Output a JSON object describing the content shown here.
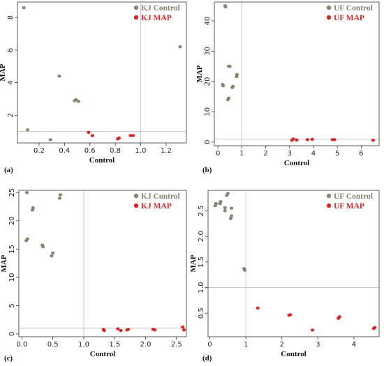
{
  "chart_data": [
    {
      "type": "scatter",
      "panel_label": "(a)",
      "xlabel": "Control",
      "ylabel": "MAP",
      "xlim": [
        0.03,
        1.36
      ],
      "ylim": [
        0.3,
        8.95
      ],
      "xticks": [
        0.2,
        0.4,
        0.6,
        0.8,
        1.0,
        1.2
      ],
      "xtick_labels": [
        "0.2",
        "0.4",
        "0.6",
        "0.8",
        "1.0",
        "1.2"
      ],
      "yticks": [
        2,
        4,
        6,
        8
      ],
      "ytick_labels": [
        "2",
        "4",
        "6",
        "8"
      ],
      "ref_x": 1.0,
      "ref_y": 1.0,
      "legend_position": "top-right",
      "series": [
        {
          "name": "KJ Control",
          "color": "#8c8272",
          "points": [
            [
              0.08,
              8.6
            ],
            [
              0.11,
              1.1
            ],
            [
              0.29,
              0.5
            ],
            [
              0.36,
              4.4
            ],
            [
              0.48,
              2.9
            ],
            [
              0.49,
              2.95
            ],
            [
              0.51,
              2.85
            ],
            [
              1.31,
              6.2
            ]
          ]
        },
        {
          "name": "KJ MAP",
          "color": "#d62828",
          "points": [
            [
              0.59,
              0.95
            ],
            [
              0.62,
              0.75
            ],
            [
              0.82,
              0.55
            ],
            [
              0.83,
              0.6
            ],
            [
              0.92,
              0.75
            ],
            [
              0.94,
              0.75
            ]
          ]
        }
      ]
    },
    {
      "type": "scatter",
      "panel_label": "(b)",
      "xlabel": "Control",
      "ylabel": "MAP",
      "xlim": [
        -0.15,
        6.75
      ],
      "ylim": [
        -1.2,
        46.2
      ],
      "xticks": [
        0,
        1,
        2,
        3,
        4,
        5,
        6
      ],
      "xtick_labels": [
        "0",
        "1",
        "2",
        "3",
        "4",
        "5",
        "6"
      ],
      "yticks": [
        0,
        10,
        20,
        30,
        40
      ],
      "ytick_labels": [
        "0",
        "10",
        "20",
        "30",
        "40"
      ],
      "ref_x": 1.0,
      "ref_y": 1.0,
      "legend_position": "top-right",
      "series": [
        {
          "name": "UF Control",
          "color": "#8c8272",
          "points": [
            [
              0.3,
              45.0
            ],
            [
              0.32,
              44.6
            ],
            [
              0.2,
              19.0
            ],
            [
              0.22,
              18.6
            ],
            [
              0.45,
              25.0
            ],
            [
              0.5,
              25.0
            ],
            [
              0.42,
              14.0
            ],
            [
              0.45,
              14.5
            ],
            [
              0.6,
              18.0
            ],
            [
              0.63,
              18.4
            ],
            [
              0.78,
              21.6
            ],
            [
              0.8,
              22.3
            ]
          ]
        },
        {
          "name": "UF MAP",
          "color": "#d62828",
          "points": [
            [
              3.1,
              0.6
            ],
            [
              3.15,
              1.0
            ],
            [
              3.3,
              0.7
            ],
            [
              3.75,
              0.8
            ],
            [
              3.95,
              0.9
            ],
            [
              4.8,
              0.8
            ],
            [
              4.88,
              0.8
            ],
            [
              6.5,
              0.6
            ]
          ]
        }
      ]
    },
    {
      "type": "scatter",
      "panel_label": "(c)",
      "xlabel": "Control",
      "ylabel": "MAP",
      "xlim": [
        -0.05,
        2.66
      ],
      "ylim": [
        -0.5,
        25.4
      ],
      "xticks": [
        0.0,
        0.5,
        1.0,
        1.5,
        2.0,
        2.5
      ],
      "xtick_labels": [
        "0.0",
        "0.5",
        "1.0",
        "1.5",
        "2.0",
        "2.5"
      ],
      "yticks": [
        0,
        5,
        10,
        15,
        20,
        25
      ],
      "ytick_labels": [
        "0",
        "5",
        "10",
        "15",
        "20",
        "25"
      ],
      "ref_x": 1.0,
      "ref_y": 1.0,
      "legend_position": "top-right",
      "series": [
        {
          "name": "KJ Control",
          "color": "#8c8272",
          "points": [
            [
              0.08,
              25.0
            ],
            [
              0.07,
              16.5
            ],
            [
              0.09,
              16.8
            ],
            [
              0.17,
              21.9
            ],
            [
              0.18,
              22.3
            ],
            [
              0.33,
              15.7
            ],
            [
              0.34,
              15.4
            ],
            [
              0.48,
              13.8
            ],
            [
              0.5,
              14.3
            ],
            [
              0.61,
              24.0
            ],
            [
              0.62,
              24.6
            ]
          ]
        },
        {
          "name": "KJ MAP",
          "color": "#d62828",
          "points": [
            [
              1.32,
              0.8
            ],
            [
              1.33,
              0.6
            ],
            [
              1.55,
              0.9
            ],
            [
              1.6,
              0.6
            ],
            [
              1.7,
              0.7
            ],
            [
              1.72,
              0.8
            ],
            [
              2.12,
              0.8
            ],
            [
              2.15,
              0.7
            ],
            [
              2.6,
              1.2
            ],
            [
              2.62,
              0.7
            ]
          ]
        }
      ]
    },
    {
      "type": "scatter",
      "panel_label": "(d)",
      "xlabel": "Control",
      "ylabel": "MAP",
      "xlim": [
        -0.05,
        4.7
      ],
      "ylim": [
        0.04,
        2.9
      ],
      "xticks": [
        0,
        1,
        2,
        3,
        4
      ],
      "xtick_labels": [
        "0",
        "1",
        "2",
        "3",
        "4"
      ],
      "yticks": [
        0.5,
        1.0,
        1.5,
        2.0,
        2.5
      ],
      "ytick_labels": [
        "0.5",
        "1.0",
        "1.5",
        "2.0",
        "2.5"
      ],
      "ref_x": 1.0,
      "ref_y": 1.0,
      "legend_position": "top-right",
      "series": [
        {
          "name": "UF Control",
          "color": "#8c8272",
          "points": [
            [
              0.15,
              2.6
            ],
            [
              0.17,
              2.64
            ],
            [
              0.28,
              2.64
            ],
            [
              0.3,
              2.68
            ],
            [
              0.42,
              2.5
            ],
            [
              0.42,
              2.56
            ],
            [
              0.47,
              2.8
            ],
            [
              0.5,
              2.84
            ],
            [
              0.58,
              2.35
            ],
            [
              0.6,
              2.4
            ],
            [
              0.6,
              2.55
            ],
            [
              0.95,
              1.37
            ],
            [
              0.97,
              1.34
            ]
          ]
        },
        {
          "name": "UF MAP",
          "color": "#d62828",
          "points": [
            [
              1.33,
              0.6
            ],
            [
              2.2,
              0.46
            ],
            [
              2.23,
              0.47
            ],
            [
              2.85,
              0.17
            ],
            [
              3.57,
              0.4
            ],
            [
              3.6,
              0.43
            ],
            [
              4.55,
              0.2
            ],
            [
              4.58,
              0.22
            ]
          ]
        }
      ]
    }
  ]
}
